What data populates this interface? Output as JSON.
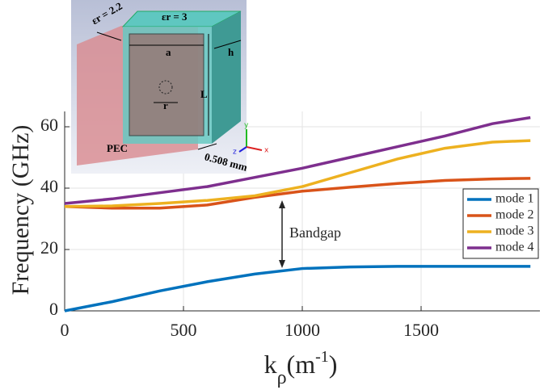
{
  "chart_data": {
    "type": "line",
    "ylabel": "Frequency (GHz)",
    "xlabel": [
      "k",
      "ρ",
      "(m",
      "-1",
      ")"
    ],
    "x": [
      0,
      200,
      400,
      600,
      800,
      1000,
      1200,
      1400,
      1600,
      1800,
      1960
    ],
    "series": [
      {
        "name": "mode 1",
        "color": "#0072bd",
        "values": [
          0,
          3,
          6.5,
          9.5,
          12,
          13.8,
          14.3,
          14.5,
          14.5,
          14.5,
          14.5
        ]
      },
      {
        "name": "mode 2",
        "color": "#d95319",
        "values": [
          34,
          33.5,
          33.5,
          34.5,
          37,
          39,
          40.3,
          41.5,
          42.5,
          43,
          43.2
        ]
      },
      {
        "name": "mode 3",
        "color": "#edb120",
        "values": [
          34,
          34.2,
          35,
          36,
          37.5,
          40.5,
          45,
          49.5,
          53,
          55,
          55.5
        ]
      },
      {
        "name": "mode 4",
        "color": "#7e2f8e",
        "values": [
          35,
          36.5,
          38.5,
          40.5,
          43.5,
          46.5,
          50,
          53.5,
          57,
          61,
          63
        ]
      }
    ],
    "xlim": [
      0,
      2000
    ],
    "xticks": [
      0,
      500,
      1000,
      1500
    ],
    "ylim": [
      0,
      65
    ],
    "yticks": [
      0,
      20,
      40,
      60
    ],
    "grid": true,
    "legend": "right",
    "annotation": "Bandgap"
  },
  "inset": {
    "labels": {
      "er1": "εr = 2.2",
      "er2": "εr = 3",
      "a": "a",
      "h": "h",
      "L": "L",
      "r": "r",
      "pec": "PEC",
      "thickness": "0.508 mm",
      "axis_y": "y",
      "axis_z": "z",
      "axis_x": "x"
    }
  }
}
